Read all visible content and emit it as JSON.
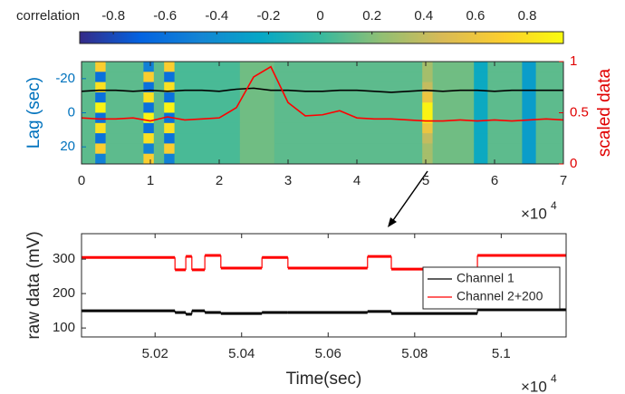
{
  "chart_data": [
    {
      "type": "heatmap",
      "colorbar": {
        "label": "correlation",
        "clim": [
          -0.93,
          0.94
        ],
        "ticks": [
          -0.8,
          -0.6,
          -0.4,
          -0.2,
          0,
          0.2,
          0.4,
          0.6,
          0.8
        ]
      },
      "colormap": [
        "#352a87",
        "#0363e1",
        "#1485d4",
        "#06a7c6",
        "#38b99e",
        "#92bf73",
        "#d9ba56",
        "#fcce2e",
        "#f9fb0e"
      ],
      "heatmap": {
        "x_edges": [
          0,
          0.2,
          0.35,
          0.9,
          1.05,
          1.2,
          1.35,
          2.3,
          2.8,
          4.95,
          5.1,
          5.7,
          5.9,
          6.4,
          6.6,
          7
        ],
        "lag_edges": [
          -30,
          -24,
          -18,
          -12,
          -6,
          0,
          6,
          12,
          18,
          24,
          30
        ],
        "z": [
          [
            0.1,
            0.7,
            0.1,
            -0.5,
            0.1,
            0.7,
            0.05,
            0.15,
            0.1,
            0.3,
            0.15,
            -0.2,
            0.1,
            -0.3,
            0.1
          ],
          [
            0.1,
            -0.6,
            0.1,
            0.7,
            0.1,
            -0.6,
            0.05,
            0.15,
            0.1,
            0.3,
            0.15,
            -0.2,
            0.1,
            -0.3,
            0.1
          ],
          [
            0.1,
            0.8,
            0.1,
            -0.6,
            0.1,
            0.8,
            0.05,
            0.15,
            0.1,
            0.4,
            0.15,
            -0.2,
            0.1,
            -0.3,
            0.1
          ],
          [
            0.1,
            -0.6,
            0.1,
            0.8,
            0.1,
            -0.6,
            0.05,
            0.15,
            0.1,
            0.6,
            0.15,
            -0.2,
            0.1,
            -0.3,
            0.1
          ],
          [
            0.1,
            0.9,
            0.1,
            -0.6,
            0.1,
            0.9,
            0.05,
            0.15,
            0.1,
            0.9,
            0.15,
            -0.2,
            0.1,
            -0.3,
            0.1
          ],
          [
            0.1,
            -0.6,
            0.1,
            0.9,
            0.1,
            -0.6,
            0.05,
            0.15,
            0.1,
            0.9,
            0.15,
            -0.2,
            0.1,
            -0.3,
            0.1
          ],
          [
            0.1,
            0.8,
            0.1,
            -0.6,
            0.1,
            0.8,
            0.05,
            0.15,
            0.1,
            0.6,
            0.15,
            -0.2,
            0.1,
            -0.3,
            0.1
          ],
          [
            0.1,
            -0.6,
            0.1,
            0.8,
            0.1,
            -0.6,
            0.05,
            0.15,
            0.1,
            0.4,
            0.15,
            -0.2,
            0.1,
            -0.3,
            0.1
          ],
          [
            0.1,
            0.7,
            0.1,
            -0.5,
            0.1,
            0.7,
            0.05,
            0.15,
            0.1,
            0.3,
            0.15,
            -0.2,
            0.1,
            -0.3,
            0.1
          ],
          [
            0.1,
            -0.5,
            0.1,
            0.7,
            0.1,
            -0.5,
            0.05,
            0.15,
            0.1,
            0.3,
            0.15,
            -0.2,
            0.1,
            -0.3,
            0.1
          ]
        ]
      },
      "xlim": [
        0,
        7
      ],
      "xticks": [
        0,
        1,
        2,
        3,
        4,
        5,
        6,
        7
      ],
      "x_multiplier": "×10",
      "x_multiplier_power": "4",
      "ylabel": "Lag (sec)",
      "ylim": [
        -30,
        30
      ],
      "yticks": [
        -20,
        0,
        20
      ],
      "y_reversed": true,
      "y_color": "#0072bd",
      "y2label": "scaled data",
      "y2lim": [
        0,
        1
      ],
      "y2ticks": [
        0,
        0.5,
        1
      ],
      "y2_color": "#e00000",
      "x": [
        0,
        0.25,
        0.5,
        0.75,
        1,
        1.25,
        1.5,
        1.75,
        2,
        2.25,
        2.5,
        2.75,
        3,
        3.25,
        3.5,
        3.75,
        4,
        4.25,
        4.5,
        4.75,
        5,
        5.25,
        5.5,
        5.75,
        6,
        6.25,
        6.5,
        6.75,
        7
      ],
      "series": [
        {
          "color": "#000000",
          "axis": "y2",
          "values": [
            0.71,
            0.72,
            0.72,
            0.71,
            0.72,
            0.71,
            0.72,
            0.72,
            0.71,
            0.73,
            0.74,
            0.72,
            0.72,
            0.71,
            0.71,
            0.72,
            0.72,
            0.71,
            0.7,
            0.71,
            0.72,
            0.71,
            0.72,
            0.72,
            0.71,
            0.72,
            0.72,
            0.72,
            0.72
          ]
        },
        {
          "color": "#ff0000",
          "axis": "y2",
          "values": [
            0.45,
            0.44,
            0.44,
            0.45,
            0.42,
            0.46,
            0.43,
            0.44,
            0.45,
            0.55,
            0.85,
            0.95,
            0.6,
            0.47,
            0.48,
            0.52,
            0.45,
            0.44,
            0.44,
            0.43,
            0.42,
            0.42,
            0.43,
            0.42,
            0.43,
            0.42,
            0.43,
            0.44,
            0.43
          ]
        }
      ]
    },
    {
      "type": "step",
      "xlabel": "Time(sec)",
      "ylabel": "raw data (mV)",
      "xlim": [
        5.003,
        5.115
      ],
      "xticks": [
        5.02,
        5.04,
        5.06,
        5.08,
        5.1
      ],
      "x_multiplier": "×10",
      "x_multiplier_power": "4",
      "ylim": [
        74,
        374
      ],
      "yticks": [
        100,
        200,
        300
      ],
      "x_edges": [
        5.003,
        5.0246,
        5.0271,
        5.0285,
        5.0315,
        5.0352,
        5.0447,
        5.0507,
        5.0691,
        5.0746,
        5.0945,
        5.115
      ],
      "series": [
        {
          "name": "Channel 1",
          "color": "#000000",
          "values": [
            150,
            145,
            140,
            150,
            145,
            142,
            145,
            145,
            148,
            142,
            153
          ]
        },
        {
          "name": "Channel 2+200",
          "color": "#ff0000",
          "values": [
            305,
            269,
            308,
            269,
            311,
            274,
            305,
            274,
            308,
            271,
            311
          ]
        }
      ],
      "legend": "east"
    }
  ]
}
